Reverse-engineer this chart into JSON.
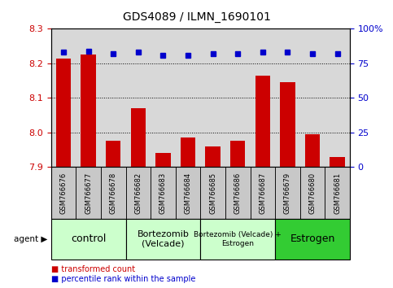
{
  "title": "GDS4089 / ILMN_1690101",
  "samples": [
    "GSM766676",
    "GSM766677",
    "GSM766678",
    "GSM766682",
    "GSM766683",
    "GSM766684",
    "GSM766685",
    "GSM766686",
    "GSM766687",
    "GSM766679",
    "GSM766680",
    "GSM766681"
  ],
  "bar_values": [
    8.215,
    8.225,
    7.975,
    8.07,
    7.94,
    7.985,
    7.96,
    7.975,
    8.165,
    8.145,
    7.995,
    7.93
  ],
  "dot_values": [
    83,
    84,
    82,
    83,
    81,
    81,
    82,
    82,
    83,
    83,
    82,
    82
  ],
  "ylim_left": [
    7.9,
    8.3
  ],
  "ylim_right": [
    0,
    100
  ],
  "yticks_left": [
    7.9,
    8.0,
    8.1,
    8.2,
    8.3
  ],
  "yticks_right": [
    0,
    25,
    50,
    75,
    100
  ],
  "ytick_labels_right": [
    "0",
    "25",
    "50",
    "75",
    "100%"
  ],
  "bar_color": "#cc0000",
  "dot_color": "#0000cc",
  "grid_color": "#000000",
  "groups": [
    {
      "label": "control",
      "start": 0,
      "end": 3,
      "color": "#ccffcc",
      "fontsize": 9
    },
    {
      "label": "Bortezomib\n(Velcade)",
      "start": 3,
      "end": 6,
      "color": "#ccffcc",
      "fontsize": 8
    },
    {
      "label": "Bortezomib (Velcade) +\nEstrogen",
      "start": 6,
      "end": 9,
      "color": "#ccffcc",
      "fontsize": 6.5
    },
    {
      "label": "Estrogen",
      "start": 9,
      "end": 12,
      "color": "#33cc33",
      "fontsize": 9
    }
  ],
  "agent_label": "agent ▶",
  "legend_bar_label": "transformed count",
  "legend_dot_label": "percentile rank within the sample",
  "background_color": "#ffffff",
  "plot_bg_color": "#d8d8d8",
  "sample_row_color": "#c8c8c8",
  "ylabel_left_color": "#cc0000",
  "ylabel_right_color": "#0000cc"
}
